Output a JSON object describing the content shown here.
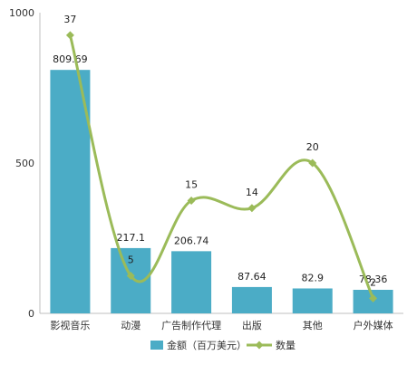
{
  "chart_data": {
    "type": "bar",
    "categories": [
      "影视音乐",
      "动漫",
      "广告制作代理",
      "出版",
      "其他",
      "户外媒体"
    ],
    "series": [
      {
        "name": "金额（百万美元）",
        "type": "bar",
        "axis": "left",
        "values": [
          809.69,
          217.1,
          206.74,
          87.64,
          82.9,
          78.36
        ],
        "labels": [
          "809.69",
          "217.1",
          "206.74",
          "87.64",
          "82.9",
          "78.36"
        ],
        "color": "#4bacc6"
      },
      {
        "name": "数量",
        "type": "line",
        "axis": "right",
        "smooth": true,
        "marker": "diamond",
        "values": [
          37,
          5,
          15,
          14,
          20,
          2
        ],
        "labels": [
          "37",
          "5",
          "15",
          "14",
          "20",
          "2"
        ],
        "color": "#9bbb59"
      }
    ],
    "ylim": [
      0,
      1000
    ],
    "yticks": [
      "0",
      "500",
      "1000"
    ],
    "y2lim": [
      0,
      40
    ],
    "grid": false,
    "legend": "bottom"
  }
}
